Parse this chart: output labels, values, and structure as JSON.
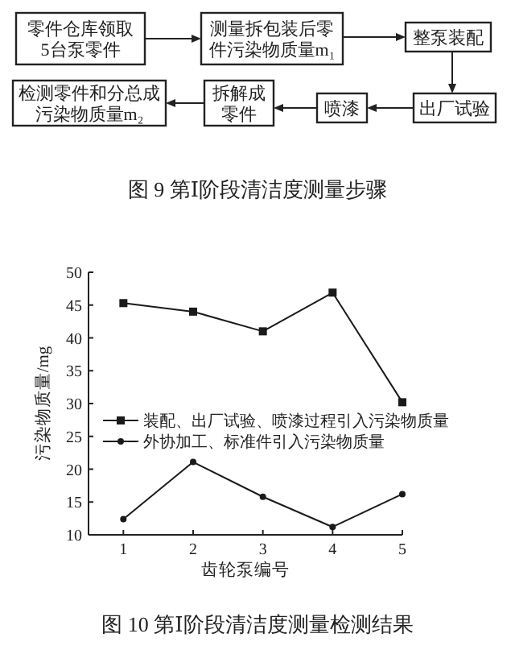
{
  "chart_data": [
    {
      "type": "other",
      "title": "图 9 第Ⅰ阶段清洁度测量步骤",
      "annotations": [
        "零件仓库领取5台泵零件",
        "测量拆包装后零件污染物质量m₁",
        "整泵装配",
        "出厂试验",
        "喷漆",
        "拆解成零件",
        "检测零件和分总成污染物质量m₂"
      ]
    },
    {
      "type": "line",
      "title": "图 10 第Ⅰ阶段清洁度测量检测结果",
      "xlabel": "齿轮泵编号",
      "ylabel": "污染物质量/mg",
      "x": [
        1,
        2,
        3,
        4,
        5
      ],
      "xlim": [
        0.5,
        5
      ],
      "xticks": [
        1,
        2,
        3,
        4,
        5
      ],
      "ylim": [
        10,
        50
      ],
      "yticks": [
        10,
        15,
        20,
        25,
        30,
        35,
        40,
        45,
        50
      ],
      "legend": "right",
      "grid": false,
      "series": [
        {
          "name": "装配、出厂试验、喷漆过程引入污染物质量",
          "color": "#1a1a1a",
          "marker": "square",
          "values": [
            45.3,
            44.0,
            41.0,
            46.9,
            30.2
          ]
        },
        {
          "name": "外协加工、标准件引入污染物质量",
          "color": "#1a1a1a",
          "marker": "circle",
          "values": [
            12.4,
            21.1,
            15.8,
            11.2,
            16.2
          ]
        }
      ]
    }
  ]
}
